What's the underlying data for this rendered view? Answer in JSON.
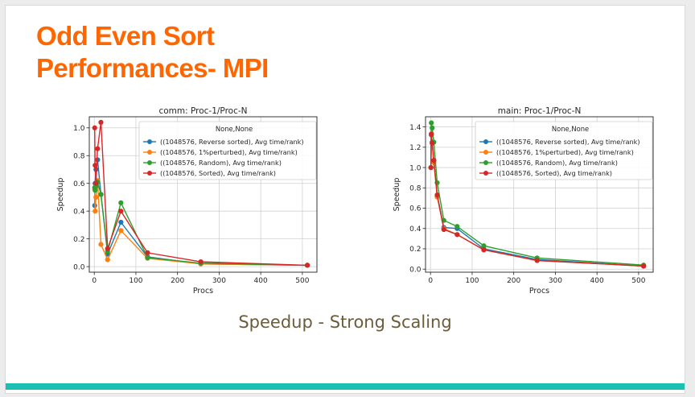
{
  "slide": {
    "title_line1": "Odd Even Sort",
    "title_line2": "Performances- MPI",
    "caption": "Speedup - Strong Scaling",
    "accent_color": "#ff6600",
    "caption_color": "#6b5c3c",
    "footer_color": "#1bbfb3"
  },
  "chart_data": [
    {
      "type": "line",
      "title": "comm: Proc-1/Proc-N",
      "xlabel": "Procs",
      "ylabel": "Speedup",
      "xlim": [
        -12,
        535
      ],
      "ylim": [
        -0.04,
        1.08
      ],
      "xticks": [
        0,
        100,
        200,
        300,
        400,
        500
      ],
      "yticks": [
        0.0,
        0.2,
        0.4,
        0.6,
        0.8,
        1.0
      ],
      "grid": true,
      "legend_title": "None,None",
      "legend_position": "top-right",
      "series": [
        {
          "name": "((1048576,  Reverse sorted), Avg time/rank)",
          "color": "#1f77b4",
          "x": [
            1,
            2,
            4,
            8,
            16,
            32,
            64,
            128,
            256,
            512
          ],
          "y": [
            0.44,
            0.6,
            0.7,
            0.77,
            0.52,
            0.09,
            0.32,
            0.07,
            0.02,
            0.01
          ]
        },
        {
          "name": "((1048576, 1%perturbed), Avg time/rank)",
          "color": "#ff7f0e",
          "x": [
            1,
            2,
            4,
            8,
            16,
            32,
            64,
            128,
            256,
            512
          ],
          "y": [
            0.56,
            0.4,
            0.5,
            0.62,
            0.16,
            0.05,
            0.26,
            0.06,
            0.02,
            0.01
          ]
        },
        {
          "name": "((1048576, Random), Avg time/rank)",
          "color": "#2ca02c",
          "x": [
            1,
            2,
            4,
            8,
            16,
            32,
            64,
            128,
            256,
            512
          ],
          "y": [
            0.57,
            0.55,
            0.58,
            0.61,
            0.52,
            0.11,
            0.46,
            0.065,
            0.025,
            0.01
          ]
        },
        {
          "name": "((1048576, Sorted), Avg time/rank)",
          "color": "#d62728",
          "x": [
            1,
            2,
            4,
            8,
            16,
            32,
            64,
            128,
            256,
            512
          ],
          "y": [
            1.0,
            0.73,
            0.6,
            0.85,
            1.04,
            0.13,
            0.4,
            0.1,
            0.035,
            0.01
          ]
        }
      ]
    },
    {
      "type": "line",
      "title": "main: Proc-1/Proc-N",
      "xlabel": "Procs",
      "ylabel": "Speedup",
      "xlim": [
        -12,
        535
      ],
      "ylim": [
        -0.03,
        1.5
      ],
      "xticks": [
        0,
        100,
        200,
        300,
        400,
        500
      ],
      "yticks": [
        0.0,
        0.2,
        0.4,
        0.6,
        0.8,
        1.0,
        1.2,
        1.4
      ],
      "grid": true,
      "legend_title": "None,None",
      "legend_position": "top-right",
      "series": [
        {
          "name": "((1048576,  Reverse sorted), Avg time/rank)",
          "color": "#1f77b4",
          "x": [
            1,
            2,
            4,
            8,
            16,
            32,
            64,
            128,
            256,
            512
          ],
          "y": [
            1.0,
            1.32,
            1.25,
            1.07,
            0.73,
            0.41,
            0.4,
            0.2,
            0.095,
            0.03
          ]
        },
        {
          "name": "((1048576, 1%perturbed), Avg time/rank)",
          "color": "#ff7f0e",
          "x": [
            1,
            2,
            4,
            8,
            16,
            32,
            64,
            128,
            256,
            512
          ],
          "y": [
            1.0,
            1.33,
            1.24,
            1.05,
            0.71,
            0.4,
            0.34,
            0.19,
            0.085,
            0.03
          ]
        },
        {
          "name": "((1048576, Random), Avg time/rank)",
          "color": "#2ca02c",
          "x": [
            1,
            2,
            4,
            8,
            16,
            32,
            64,
            128,
            256,
            512
          ],
          "y": [
            1.0,
            1.44,
            1.39,
            1.25,
            0.85,
            0.48,
            0.42,
            0.23,
            0.11,
            0.04
          ]
        },
        {
          "name": "((1048576, Sorted), Avg time/rank)",
          "color": "#d62728",
          "x": [
            1,
            2,
            4,
            8,
            16,
            32,
            64,
            128,
            256,
            512
          ],
          "y": [
            1.0,
            1.33,
            1.24,
            1.07,
            0.73,
            0.39,
            0.34,
            0.19,
            0.085,
            0.03
          ]
        }
      ]
    }
  ]
}
